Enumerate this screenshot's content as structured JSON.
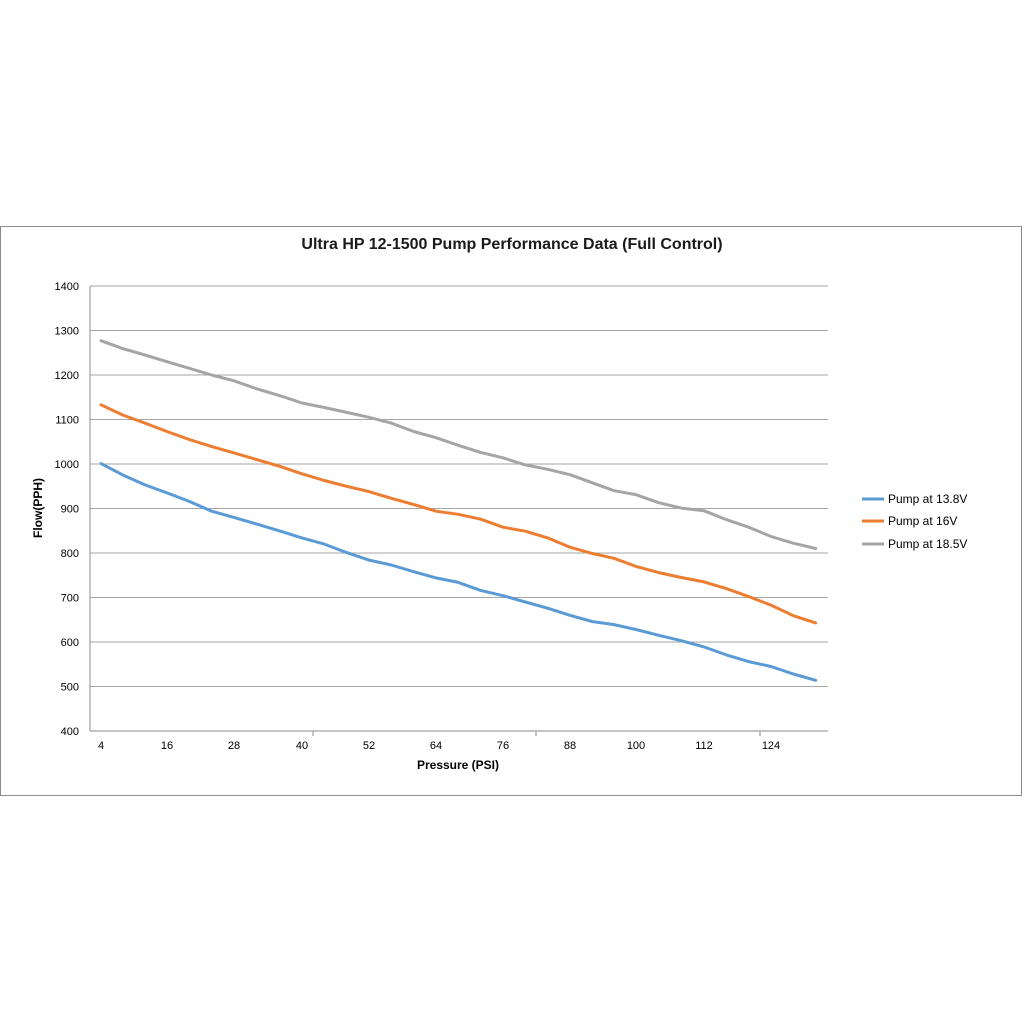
{
  "chart_data": {
    "type": "line",
    "title": "Ultra HP 12-1500 Pump Performance Data (Full Control)",
    "xlabel": "Pressure (PSI)",
    "ylabel": "Flow(PPH)",
    "xlim": [
      4,
      130
    ],
    "ylim": [
      400,
      1400
    ],
    "yticks": [
      400,
      500,
      600,
      700,
      800,
      900,
      1000,
      1100,
      1200,
      1300,
      1400
    ],
    "xticks": [
      4,
      16,
      28,
      40,
      52,
      64,
      76,
      88,
      100,
      112,
      124
    ],
    "grid": true,
    "legend_position": "right",
    "x": [
      4,
      8,
      12,
      16,
      20,
      24,
      28,
      32,
      36,
      40,
      44,
      48,
      52,
      56,
      60,
      64,
      68,
      72,
      76,
      80,
      84,
      88,
      92,
      96,
      100,
      104,
      108,
      112,
      116,
      120,
      124,
      128,
      132
    ],
    "series": [
      {
        "name": "Pump at 13.8V",
        "color": "#5b9bd5",
        "values": [
          1001,
          975,
          953,
          935,
          916,
          894,
          880,
          865,
          850,
          834,
          820,
          801,
          784,
          773,
          758,
          744,
          734,
          716,
          704,
          690,
          676,
          660,
          646,
          639,
          628,
          615,
          603,
          589,
          571,
          556,
          545,
          528,
          514
        ]
      },
      {
        "name": "Pump at 16V",
        "color": "#ed7d31",
        "values": [
          1133,
          1110,
          1092,
          1073,
          1055,
          1039,
          1025,
          1010,
          995,
          978,
          963,
          950,
          938,
          923,
          909,
          894,
          887,
          876,
          858,
          849,
          834,
          813,
          799,
          788,
          770,
          756,
          745,
          735,
          720,
          702,
          683,
          659,
          643
        ]
      },
      {
        "name": "Pump at 18.5V",
        "color": "#a5a5a5",
        "values": [
          1277,
          1259,
          1245,
          1230,
          1215,
          1200,
          1187,
          1169,
          1154,
          1137,
          1127,
          1116,
          1105,
          1092,
          1073,
          1059,
          1042,
          1026,
          1014,
          998,
          988,
          976,
          958,
          940,
          931,
          913,
          901,
          895,
          875,
          858,
          837,
          822,
          810
        ]
      }
    ]
  }
}
